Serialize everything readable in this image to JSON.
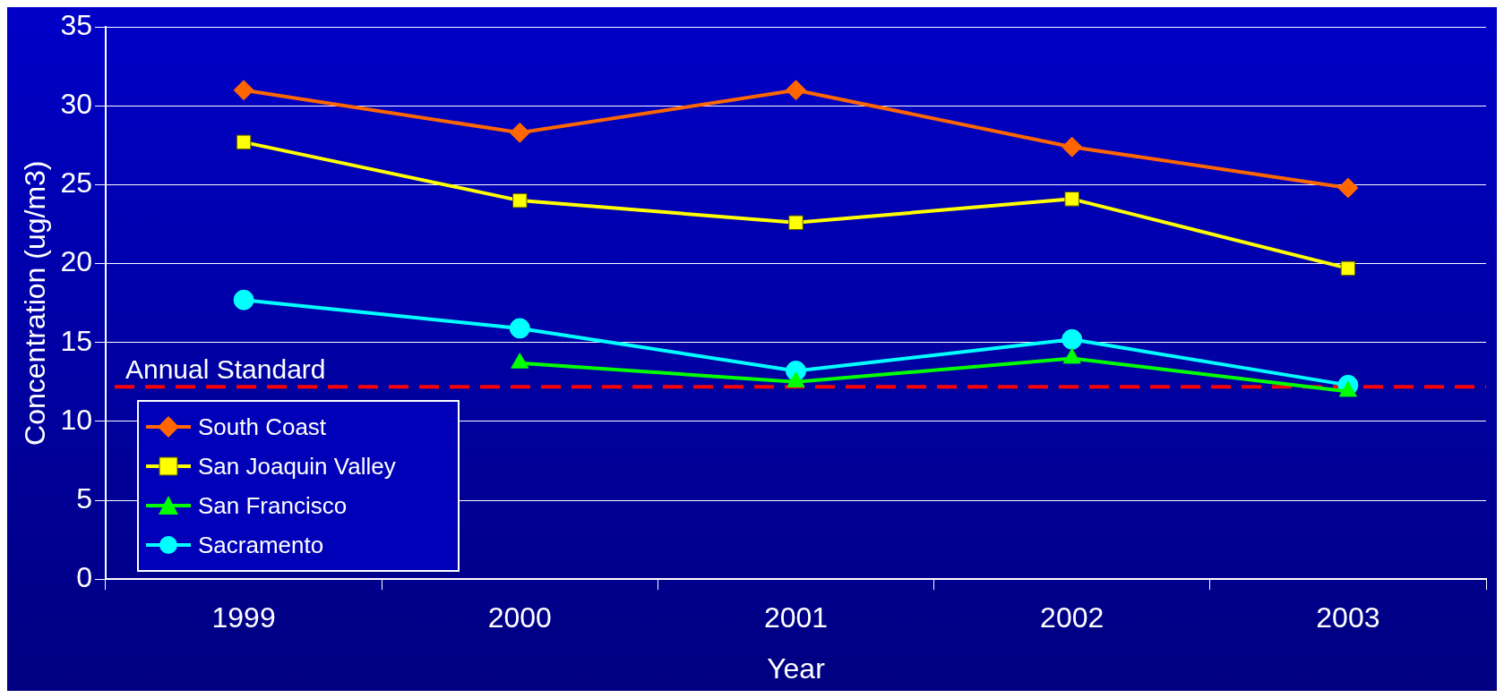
{
  "chart_data": {
    "type": "line",
    "xlabel": "Year",
    "ylabel": "Concentration (ug/m3)",
    "categories": [
      "1999",
      "2000",
      "2001",
      "2002",
      "2003"
    ],
    "series": [
      {
        "name": "South Coast",
        "color": "#ff6600",
        "marker": "diamond",
        "values": [
          31.0,
          28.3,
          31.0,
          27.4,
          24.8
        ]
      },
      {
        "name": "San Joaquin Valley",
        "color": "#ffff00",
        "marker": "square",
        "values": [
          27.7,
          24.0,
          22.6,
          24.1,
          19.7
        ]
      },
      {
        "name": "San Francisco",
        "color": "#00ff00",
        "marker": "triangle",
        "values": [
          null,
          13.7,
          12.5,
          14.0,
          11.9
        ]
      },
      {
        "name": "Sacramento",
        "color": "#00ffff",
        "marker": "circle",
        "values": [
          17.7,
          15.9,
          13.2,
          15.2,
          12.3
        ]
      }
    ],
    "ylim": [
      0,
      35
    ],
    "yticks": [
      0,
      5,
      10,
      15,
      20,
      25,
      30,
      35
    ],
    "grid": "y",
    "legend": "bottom left",
    "line_style": "solid",
    "ref_lines": [
      {
        "axis": "y",
        "value": 12.2,
        "label": "Annual Standard",
        "color": "#ff0000",
        "line_style": "dashed"
      }
    ]
  }
}
